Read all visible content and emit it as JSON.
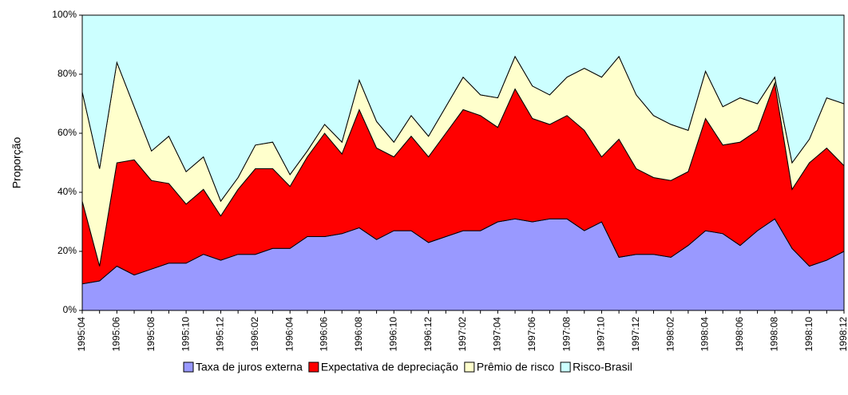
{
  "chart_data": {
    "type": "stacked-area",
    "y_label": "Proporção",
    "categories": [
      "1995:04",
      null,
      "1995:06",
      null,
      "1995:08",
      null,
      "1995:10",
      null,
      "1995:12",
      null,
      "1996:02",
      null,
      "1996:04",
      null,
      "1996:06",
      null,
      "1996:08",
      null,
      "1996:10",
      null,
      "1996:12",
      null,
      "1997:02",
      null,
      "1997:04",
      null,
      "1997:06",
      null,
      "1997:08",
      null,
      "1997:10",
      null,
      "1997:12",
      null,
      "1998:02",
      null,
      "1998:04",
      null,
      "1998:06",
      null,
      "1998:08",
      null,
      "1998:10",
      null,
      "1998:12"
    ],
    "series": [
      {
        "name": "Taxa de juros externa",
        "color": "#9999ff",
        "values": [
          9,
          10,
          15,
          12,
          14,
          16,
          16,
          19,
          17,
          19,
          19,
          21,
          21,
          25,
          25,
          26,
          28,
          24,
          27,
          27,
          23,
          25,
          27,
          27,
          30,
          31,
          30,
          31,
          31,
          27,
          30,
          18,
          19,
          19,
          18,
          22,
          27,
          26,
          22,
          27,
          31,
          21,
          15,
          17,
          20
        ]
      },
      {
        "name": "Expectativa de depreciação",
        "color": "#ff0000",
        "values": [
          28,
          5,
          35,
          39,
          30,
          27,
          20,
          22,
          15,
          22,
          29,
          27,
          21,
          27,
          35,
          27,
          40,
          31,
          25,
          32,
          29,
          35,
          41,
          39,
          32,
          44,
          35,
          32,
          35,
          34,
          22,
          40,
          29,
          26,
          26,
          25,
          38,
          30,
          35,
          34,
          46,
          20,
          35,
          38,
          29
        ]
      },
      {
        "name": "Prêmio de risco",
        "color": "#ffffcc",
        "values": [
          37,
          33,
          34,
          18,
          10,
          16,
          11,
          11,
          5,
          4,
          8,
          9,
          4,
          2,
          3,
          4,
          10,
          9,
          5,
          7,
          7,
          9,
          11,
          7,
          10,
          11,
          11,
          10,
          13,
          21,
          27,
          28,
          25,
          21,
          19,
          14,
          16,
          13,
          15,
          9,
          2,
          9,
          8,
          17,
          21
        ]
      },
      {
        "name": "Risco-Brasil",
        "color": "#ccffff",
        "values": [
          26,
          52,
          16,
          31,
          46,
          41,
          53,
          48,
          63,
          55,
          44,
          43,
          54,
          46,
          37,
          43,
          22,
          36,
          43,
          34,
          41,
          31,
          21,
          27,
          28,
          14,
          24,
          27,
          21,
          18,
          21,
          14,
          27,
          34,
          37,
          39,
          19,
          31,
          28,
          30,
          21,
          50,
          42,
          28,
          30
        ]
      }
    ],
    "ylim": [
      0,
      100
    ],
    "yticks": [
      {
        "value": 0,
        "label": "0%"
      },
      {
        "value": 20,
        "label": "20%"
      },
      {
        "value": 40,
        "label": "40%"
      },
      {
        "value": 60,
        "label": "60%"
      },
      {
        "value": 80,
        "label": "80%"
      },
      {
        "value": 100,
        "label": "100%"
      }
    ]
  }
}
